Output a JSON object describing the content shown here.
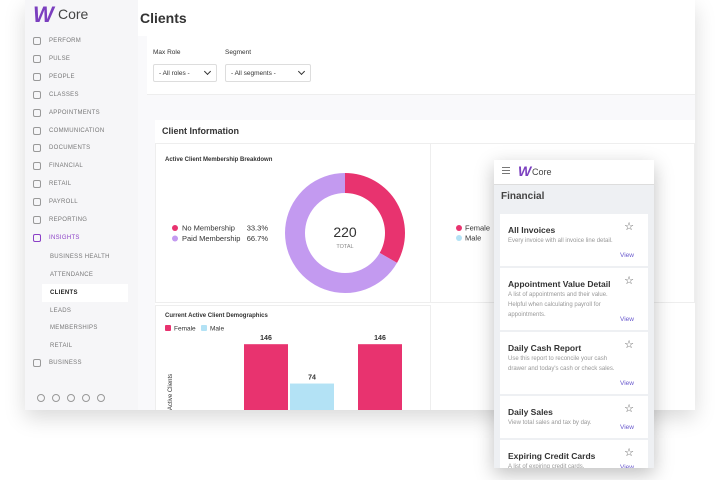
{
  "sidebar": {
    "logo": "Core",
    "items": [
      "PERFORM",
      "PULSE",
      "PEOPLE",
      "CLASSES",
      "APPOINTMENTS",
      "COMMUNICATION",
      "DOCUMENTS",
      "FINANCIAL",
      "RETAIL",
      "PAYROLL",
      "REPORTING",
      "INSIGHTS"
    ],
    "active_item": 11,
    "subitems": [
      "BUSINESS HEALTH",
      "ATTENDANCE",
      "CLIENTS",
      "LEADS",
      "MEMBERSHIPS",
      "RETAIL"
    ],
    "active_subitem": 2,
    "last_item": "BUSINESS"
  },
  "header": {
    "title": "Clients"
  },
  "filters": [
    {
      "label": "Max Role",
      "value": "- All roles -"
    },
    {
      "label": "Segment",
      "value": "- All segments -"
    }
  ],
  "section_title": "Client Information",
  "chart_data": [
    {
      "type": "pie",
      "title": "Active Client Membership Breakdown",
      "categories": [
        "No Membership",
        "Paid Membership"
      ],
      "values": [
        33.3,
        66.7
      ],
      "value_labels": [
        "33.3%",
        "66.7%"
      ],
      "colors": [
        "#e8336f",
        "#c39af0"
      ],
      "donut": true,
      "center_value": 220,
      "center_label": "TOTAL"
    },
    {
      "type": "bar",
      "title": "Current Active Client Demographics",
      "y_label": "Active Clients",
      "categories": [
        null,
        null
      ],
      "series": [
        {
          "name": "Female",
          "color": "#e8336f",
          "values": [
            146,
            146
          ]
        },
        {
          "name": "Male",
          "color": "#b3e2f5",
          "values": [
            74,
            null
          ]
        }
      ],
      "ylim": [
        0,
        150
      ]
    }
  ],
  "gender_legend": [
    {
      "name": "Female",
      "color": "#e8336f"
    },
    {
      "name": "Male",
      "color": "#b3e2f5"
    }
  ],
  "panel": {
    "logo": "Core",
    "title": "Financial",
    "items": [
      {
        "title": "All Invoices",
        "description": "Every invoice with all invoice line detail.",
        "link": "View"
      },
      {
        "title": "Appointment Value Detail",
        "description": "A list of appointments and their value. Helpful when calculating payroll for appointments.",
        "link": "View"
      },
      {
        "title": "Daily Cash Report",
        "description": "Use this report to reconcile your cash drawer and today's cash or check sales.",
        "link": "View"
      },
      {
        "title": "Daily Sales",
        "description": "View total sales and tax by day.",
        "link": "View"
      },
      {
        "title": "Expiring Credit Cards",
        "description": "A list of expiring credit cards.",
        "link": "View"
      }
    ]
  }
}
